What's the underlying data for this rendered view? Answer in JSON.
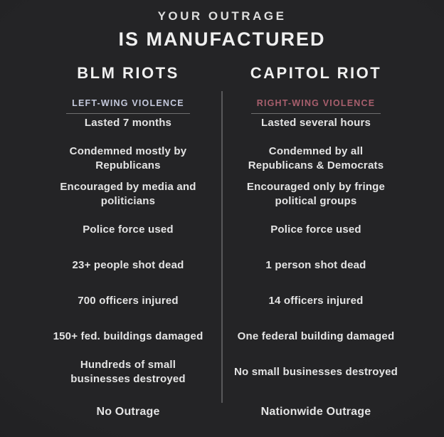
{
  "title": {
    "line1": "YOUR OUTRAGE",
    "line2": "IS MANUFACTURED"
  },
  "columns": {
    "left": {
      "title": "BLM RIOTS",
      "subtitle": "LEFT-WING VIOLENCE",
      "accent_color": "#c4c9dc"
    },
    "right": {
      "title": "CAPITOL RIOT",
      "subtitle": "RIGHT-WING VIOLENCE",
      "accent_color": "#a85f6d"
    }
  },
  "rows": [
    {
      "left": "Lasted 7 months",
      "right": "Lasted several hours"
    },
    {
      "left": "Condemned mostly by\nRepublicans",
      "right": "Condemned by all\nRepublicans & Democrats"
    },
    {
      "left": "Encouraged by media and\npoliticians",
      "right": "Encouraged only by fringe\npolitical groups"
    },
    {
      "left": "Police force used",
      "right": "Police force used"
    },
    {
      "left": "23+ people shot dead",
      "right": "1 person shot dead"
    },
    {
      "left": "700 officers injured",
      "right": "14 officers injured"
    },
    {
      "left": "150+ fed. buildings damaged",
      "right": "One federal building damaged"
    },
    {
      "left": "Hundreds of small\nbusinesses destroyed",
      "right": "No small businesses destroyed"
    }
  ],
  "footer": {
    "left": "No Outrage",
    "right": "Nationwide Outrage"
  },
  "colors": {
    "background": "#222224",
    "text": "#e4e4e4",
    "left_accent": "#c4c9dc",
    "right_accent": "#a85f6d",
    "divider": "#59595b"
  }
}
